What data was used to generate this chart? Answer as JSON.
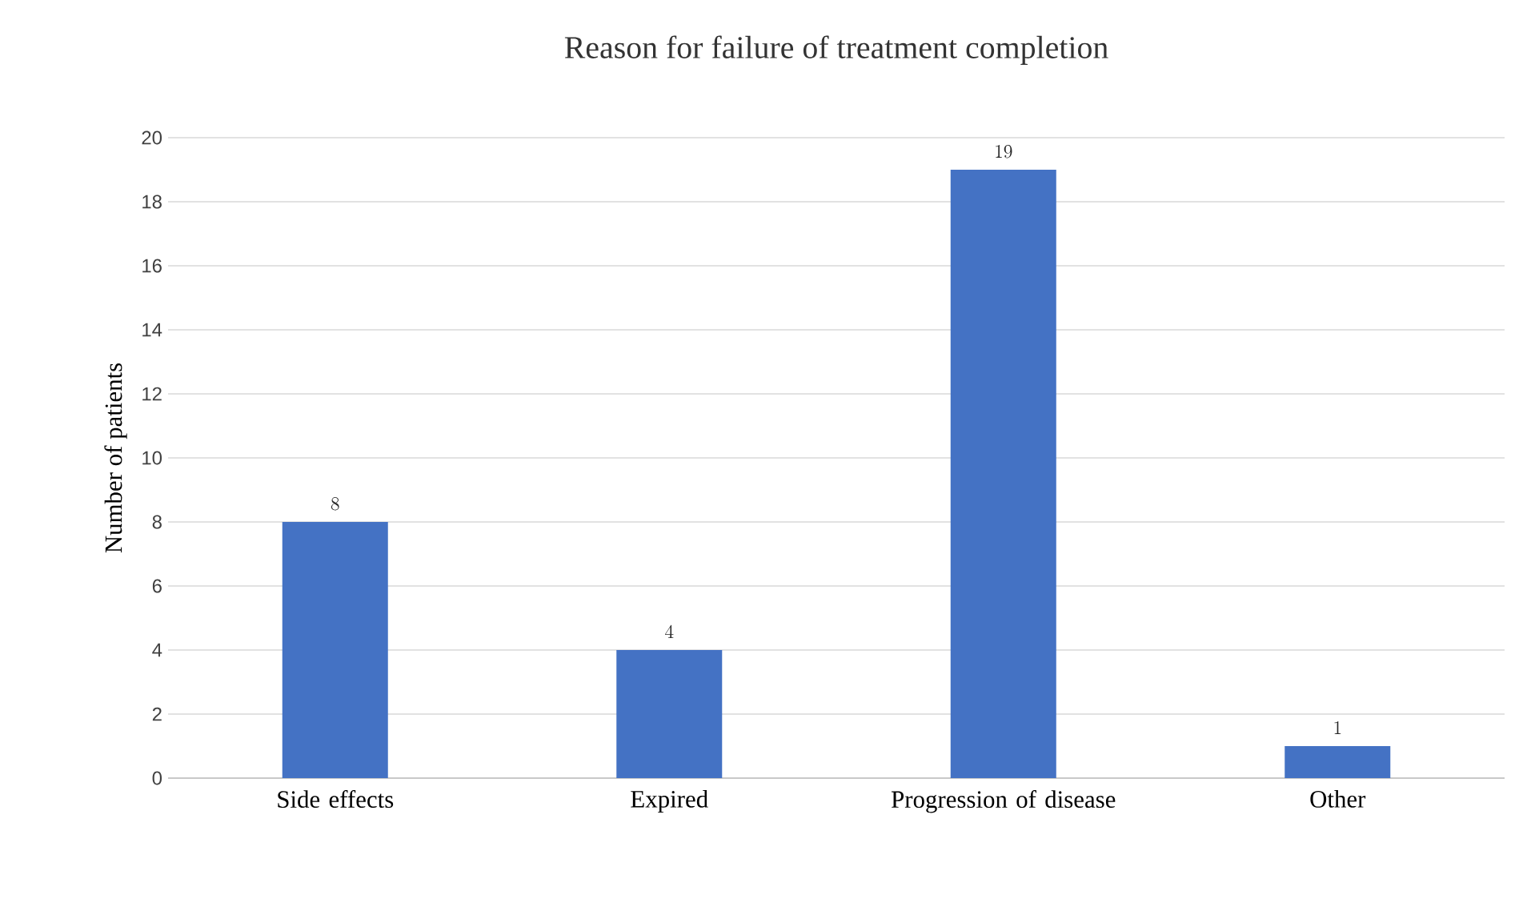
{
  "chart_data": {
    "type": "bar",
    "title": "Reason for failure of treatment completion",
    "ylabel": "Number of patients",
    "categories": [
      "Side effects",
      "Expired",
      "Progression of disease",
      "Other"
    ],
    "values": [
      8,
      4,
      19,
      1
    ],
    "color": "#4472c4",
    "ylim": [
      0,
      20
    ],
    "yticks": [
      0,
      2,
      4,
      6,
      8,
      10,
      12,
      14,
      16,
      18,
      20
    ],
    "grid": "y",
    "data_labels": true
  }
}
